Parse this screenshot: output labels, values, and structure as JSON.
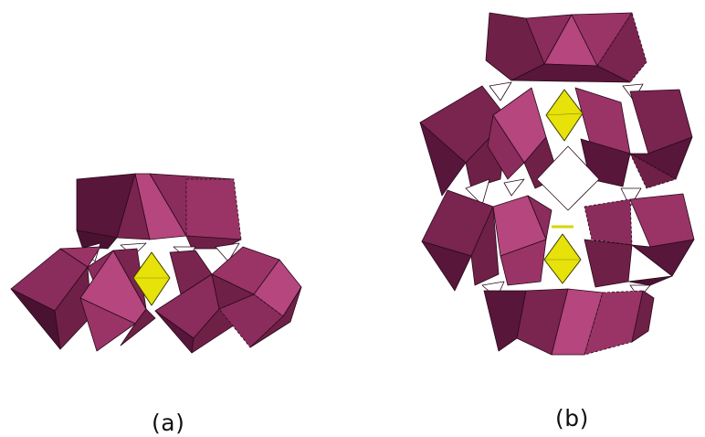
{
  "colors": {
    "background": "#ffffff",
    "polyhedron_light": "#b5467e",
    "polyhedron_mid": "#9a3466",
    "polyhedron_dark": "#6f2046",
    "polyhedron_deep": "#57163a",
    "edge": "#2a0a1c",
    "heteroatom_tetrahedron": "#e6e20a",
    "heteroatom_tetrahedron_shade": "#bdb90a"
  },
  "panels": {
    "a": {
      "label": "(a)"
    },
    "b": {
      "label": "(b)"
    }
  }
}
